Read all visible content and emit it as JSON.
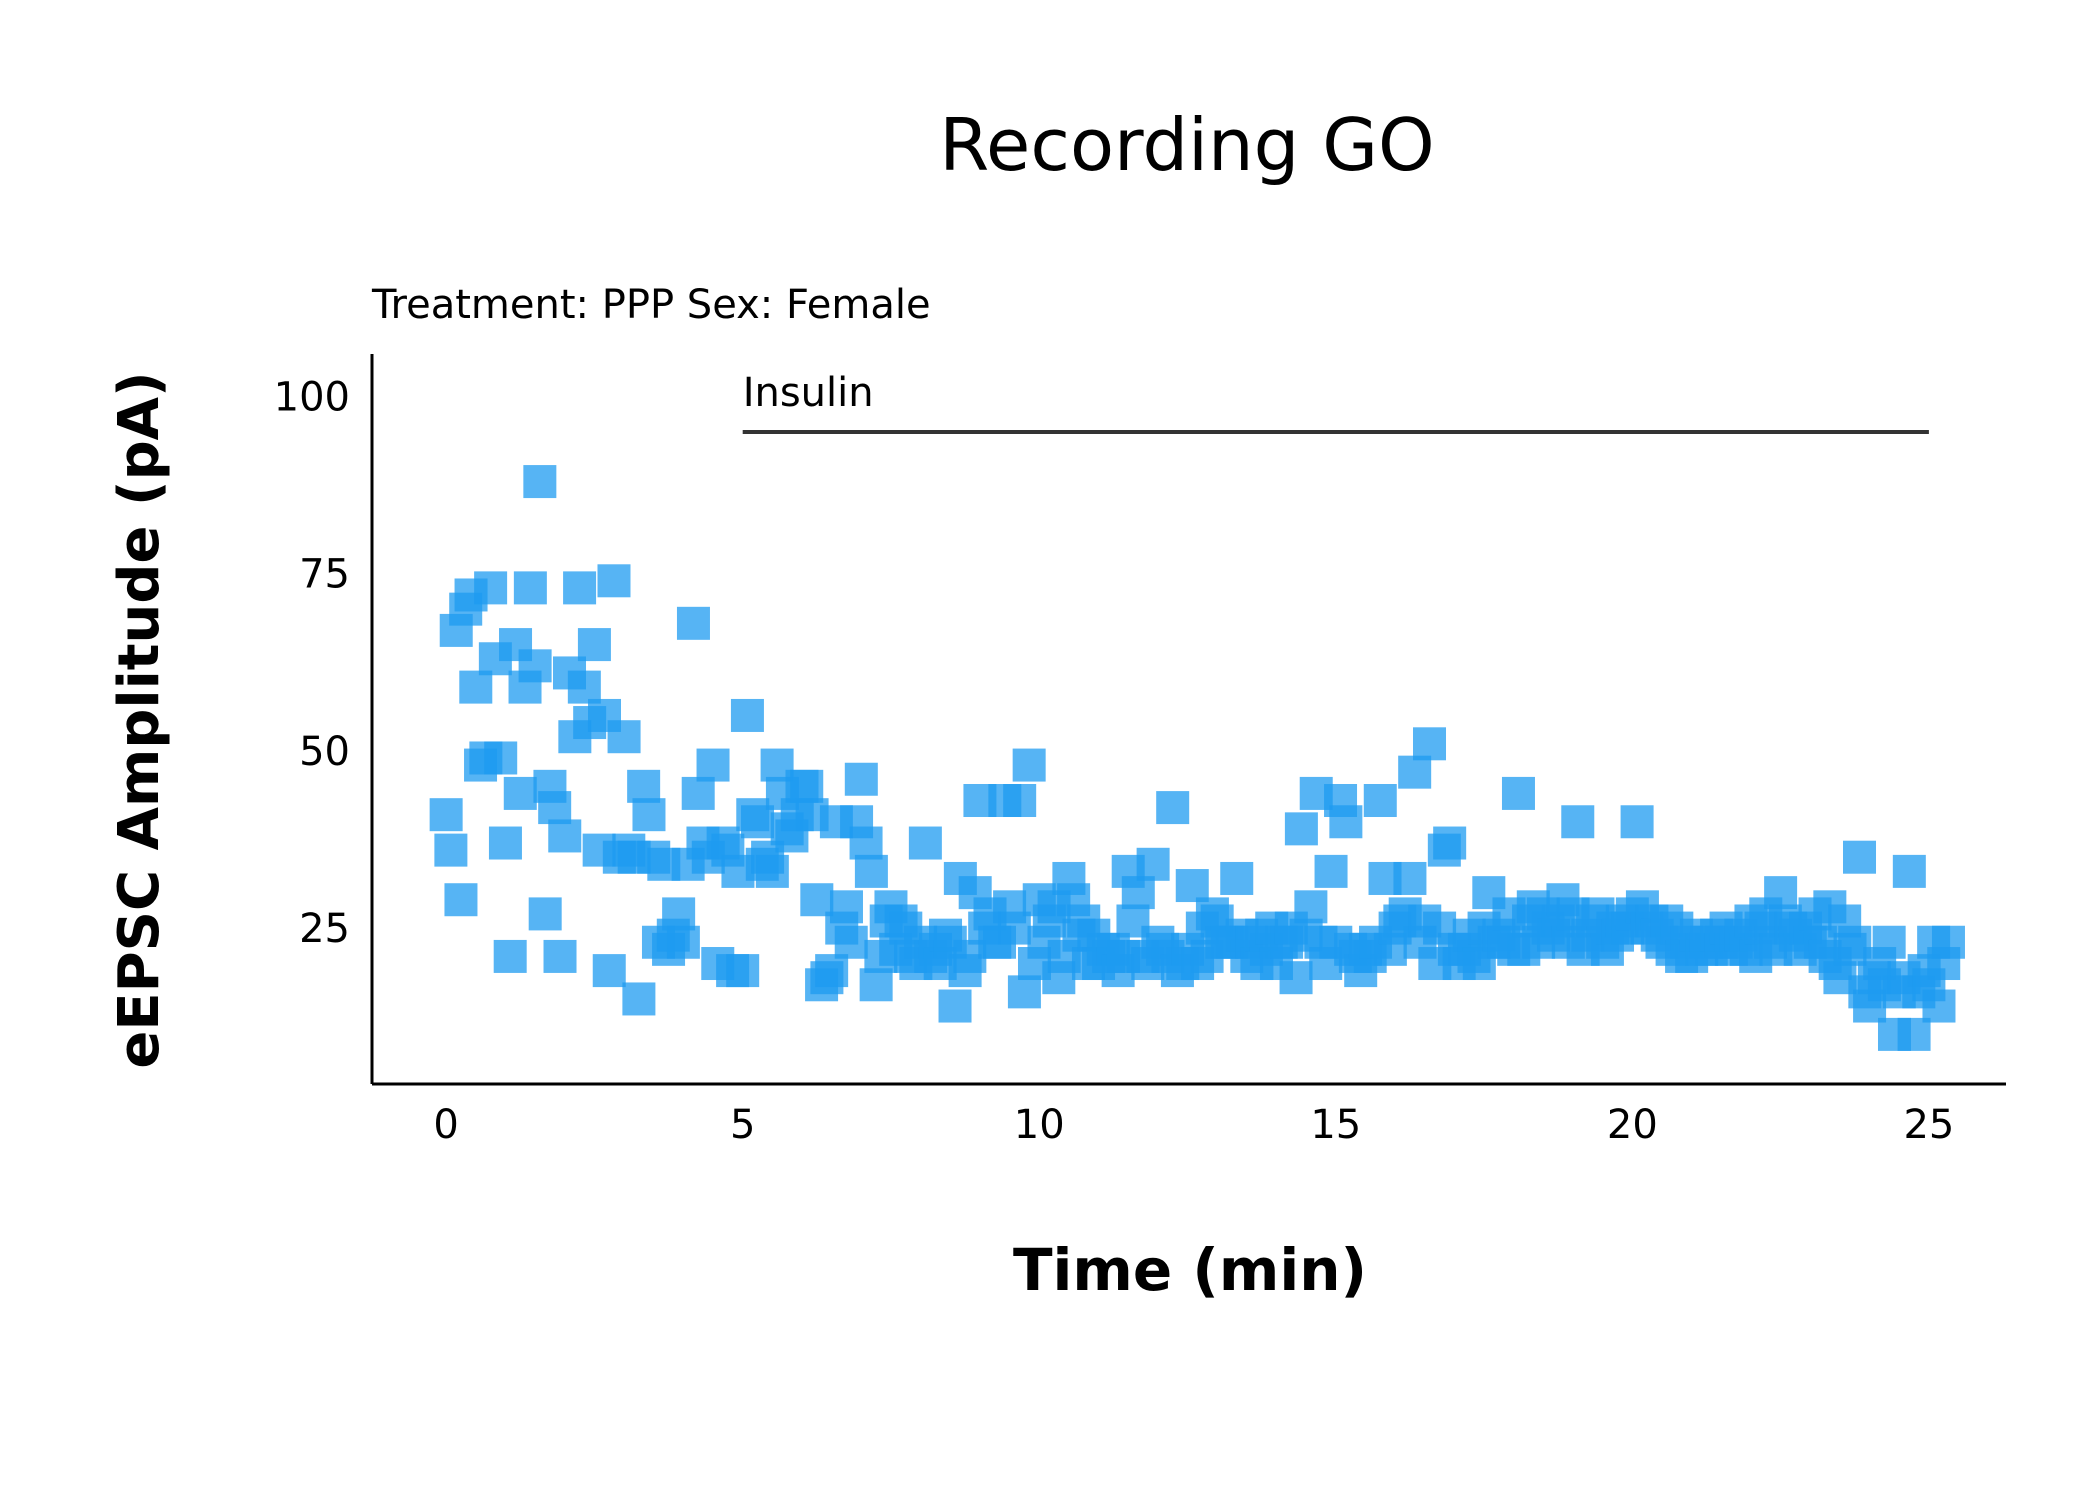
{
  "chart_data": {
    "type": "scatter",
    "title": "Recording GO",
    "subtitle": "Treatment: PPP  Sex: Female",
    "xlabel": "Time (min)",
    "ylabel": "eEPSC Amplitude (pA)",
    "xlim": [
      -1.25,
      26.3
    ],
    "ylim": [
      3,
      106
    ],
    "xticks": [
      0,
      5,
      10,
      15,
      20,
      25
    ],
    "yticks": [
      25,
      50,
      75,
      100
    ],
    "grid": false,
    "legend": "none",
    "marker": "square",
    "marker_color": "#1E9BF0",
    "annotation": {
      "label": "Insulin",
      "x_start": 5,
      "x_end": 25,
      "y": 95,
      "color": "#333333"
    },
    "points": [
      [
        0.0,
        41
      ],
      [
        0.08,
        36
      ],
      [
        0.17,
        67
      ],
      [
        0.25,
        29
      ],
      [
        0.33,
        70
      ],
      [
        0.42,
        72
      ],
      [
        0.5,
        59
      ],
      [
        0.58,
        48
      ],
      [
        0.67,
        49
      ],
      [
        0.75,
        73
      ],
      [
        0.83,
        63
      ],
      [
        0.92,
        49
      ],
      [
        1.0,
        37
      ],
      [
        1.08,
        21
      ],
      [
        1.17,
        65
      ],
      [
        1.25,
        44
      ],
      [
        1.33,
        59
      ],
      [
        1.42,
        73
      ],
      [
        1.5,
        62
      ],
      [
        1.58,
        88
      ],
      [
        1.67,
        27
      ],
      [
        1.75,
        45
      ],
      [
        1.83,
        42
      ],
      [
        1.92,
        21
      ],
      [
        2.0,
        38
      ],
      [
        2.08,
        61
      ],
      [
        2.17,
        52
      ],
      [
        2.25,
        73
      ],
      [
        2.33,
        59
      ],
      [
        2.42,
        54
      ],
      [
        2.5,
        65
      ],
      [
        2.58,
        36
      ],
      [
        2.67,
        55
      ],
      [
        2.75,
        19
      ],
      [
        2.83,
        74
      ],
      [
        2.92,
        35
      ],
      [
        3.0,
        52
      ],
      [
        3.08,
        36
      ],
      [
        3.17,
        35
      ],
      [
        3.25,
        15
      ],
      [
        3.33,
        45
      ],
      [
        3.42,
        41
      ],
      [
        3.5,
        35
      ],
      [
        3.58,
        23
      ],
      [
        3.67,
        34
      ],
      [
        3.75,
        22
      ],
      [
        3.83,
        24
      ],
      [
        3.92,
        27
      ],
      [
        4.0,
        23
      ],
      [
        4.08,
        34
      ],
      [
        4.17,
        68
      ],
      [
        4.25,
        44
      ],
      [
        4.33,
        37
      ],
      [
        4.42,
        35
      ],
      [
        4.5,
        48
      ],
      [
        4.58,
        20
      ],
      [
        4.67,
        37
      ],
      [
        4.75,
        36
      ],
      [
        4.83,
        19
      ],
      [
        4.92,
        33
      ],
      [
        5.0,
        19
      ],
      [
        5.08,
        55
      ],
      [
        5.17,
        41
      ],
      [
        5.25,
        40
      ],
      [
        5.33,
        34
      ],
      [
        5.42,
        35
      ],
      [
        5.5,
        33
      ],
      [
        5.58,
        48
      ],
      [
        5.67,
        44
      ],
      [
        5.75,
        39
      ],
      [
        5.83,
        38
      ],
      [
        5.92,
        41
      ],
      [
        6.0,
        45
      ],
      [
        6.08,
        45
      ],
      [
        6.17,
        41
      ],
      [
        6.25,
        29
      ],
      [
        6.33,
        17
      ],
      [
        6.42,
        18
      ],
      [
        6.5,
        19
      ],
      [
        6.58,
        40
      ],
      [
        6.67,
        25
      ],
      [
        6.75,
        28
      ],
      [
        6.83,
        23
      ],
      [
        6.92,
        40
      ],
      [
        7.0,
        46
      ],
      [
        7.08,
        37
      ],
      [
        7.17,
        33
      ],
      [
        7.25,
        17
      ],
      [
        7.33,
        21
      ],
      [
        7.42,
        26
      ],
      [
        7.5,
        28
      ],
      [
        7.58,
        22
      ],
      [
        7.67,
        26
      ],
      [
        7.75,
        25
      ],
      [
        7.83,
        21
      ],
      [
        7.92,
        20
      ],
      [
        8.0,
        23
      ],
      [
        8.08,
        37
      ],
      [
        8.17,
        21
      ],
      [
        8.25,
        22
      ],
      [
        8.33,
        20
      ],
      [
        8.42,
        24
      ],
      [
        8.5,
        23
      ],
      [
        8.58,
        14
      ],
      [
        8.67,
        32
      ],
      [
        8.75,
        19
      ],
      [
        8.83,
        21
      ],
      [
        8.92,
        30
      ],
      [
        9.0,
        43
      ],
      [
        9.08,
        25
      ],
      [
        9.17,
        27
      ],
      [
        9.25,
        23
      ],
      [
        9.33,
        23
      ],
      [
        9.42,
        43
      ],
      [
        9.5,
        28
      ],
      [
        9.58,
        25
      ],
      [
        9.67,
        43
      ],
      [
        9.75,
        16
      ],
      [
        9.83,
        48
      ],
      [
        9.92,
        20
      ],
      [
        10.0,
        29
      ],
      [
        10.08,
        23
      ],
      [
        10.17,
        26
      ],
      [
        10.25,
        28
      ],
      [
        10.33,
        18
      ],
      [
        10.42,
        21
      ],
      [
        10.5,
        32
      ],
      [
        10.58,
        29
      ],
      [
        10.67,
        24
      ],
      [
        10.75,
        26
      ],
      [
        10.83,
        20
      ],
      [
        10.92,
        24
      ],
      [
        11.0,
        20
      ],
      [
        11.08,
        22
      ],
      [
        11.17,
        21
      ],
      [
        11.25,
        22
      ],
      [
        11.33,
        19
      ],
      [
        11.42,
        21
      ],
      [
        11.5,
        33
      ],
      [
        11.58,
        26
      ],
      [
        11.67,
        30
      ],
      [
        11.75,
        21
      ],
      [
        11.83,
        20
      ],
      [
        11.92,
        34
      ],
      [
        12.0,
        23
      ],
      [
        12.08,
        22
      ],
      [
        12.17,
        21
      ],
      [
        12.25,
        42
      ],
      [
        12.33,
        19
      ],
      [
        12.42,
        20
      ],
      [
        12.5,
        22
      ],
      [
        12.58,
        31
      ],
      [
        12.67,
        20
      ],
      [
        12.75,
        25
      ],
      [
        12.83,
        21
      ],
      [
        12.92,
        27
      ],
      [
        13.0,
        26
      ],
      [
        13.08,
        23
      ],
      [
        13.17,
        23
      ],
      [
        13.25,
        23
      ],
      [
        13.33,
        32
      ],
      [
        13.42,
        24
      ],
      [
        13.5,
        21
      ],
      [
        13.58,
        23
      ],
      [
        13.67,
        20
      ],
      [
        13.75,
        24
      ],
      [
        13.83,
        22
      ],
      [
        13.92,
        25
      ],
      [
        14.0,
        20
      ],
      [
        14.08,
        23
      ],
      [
        14.17,
        23
      ],
      [
        14.25,
        25
      ],
      [
        14.33,
        18
      ],
      [
        14.42,
        39
      ],
      [
        14.5,
        24
      ],
      [
        14.58,
        28
      ],
      [
        14.67,
        44
      ],
      [
        14.75,
        23
      ],
      [
        14.83,
        20
      ],
      [
        14.92,
        33
      ],
      [
        15.0,
        23
      ],
      [
        15.08,
        43
      ],
      [
        15.17,
        40
      ],
      [
        15.25,
        22
      ],
      [
        15.33,
        21
      ],
      [
        15.42,
        19
      ],
      [
        15.5,
        22
      ],
      [
        15.58,
        21
      ],
      [
        15.67,
        23
      ],
      [
        15.75,
        43
      ],
      [
        15.83,
        32
      ],
      [
        15.92,
        22
      ],
      [
        16.0,
        25
      ],
      [
        16.08,
        26
      ],
      [
        16.17,
        27
      ],
      [
        16.25,
        32
      ],
      [
        16.33,
        47
      ],
      [
        16.42,
        23
      ],
      [
        16.5,
        26
      ],
      [
        16.58,
        51
      ],
      [
        16.67,
        20
      ],
      [
        16.75,
        25
      ],
      [
        16.83,
        36
      ],
      [
        16.92,
        37
      ],
      [
        17.0,
        22
      ],
      [
        17.08,
        20
      ],
      [
        17.17,
        22
      ],
      [
        17.25,
        24
      ],
      [
        17.33,
        21
      ],
      [
        17.42,
        20
      ],
      [
        17.5,
        25
      ],
      [
        17.58,
        30
      ],
      [
        17.67,
        23
      ],
      [
        17.75,
        24
      ],
      [
        17.83,
        23
      ],
      [
        17.92,
        27
      ],
      [
        18.0,
        22
      ],
      [
        18.08,
        44
      ],
      [
        18.17,
        22
      ],
      [
        18.25,
        26
      ],
      [
        18.33,
        28
      ],
      [
        18.42,
        23
      ],
      [
        18.5,
        27
      ],
      [
        18.58,
        25
      ],
      [
        18.67,
        24
      ],
      [
        18.75,
        26
      ],
      [
        18.83,
        29
      ],
      [
        18.92,
        23
      ],
      [
        19.0,
        27
      ],
      [
        19.08,
        40
      ],
      [
        19.17,
        22
      ],
      [
        19.25,
        24
      ],
      [
        19.33,
        26
      ],
      [
        19.42,
        27
      ],
      [
        19.5,
        23
      ],
      [
        19.58,
        22
      ],
      [
        19.67,
        25
      ],
      [
        19.75,
        24
      ],
      [
        19.83,
        26
      ],
      [
        19.92,
        25
      ],
      [
        20.0,
        27
      ],
      [
        20.08,
        40
      ],
      [
        20.17,
        28
      ],
      [
        20.25,
        25
      ],
      [
        20.33,
        26
      ],
      [
        20.42,
        24
      ],
      [
        20.5,
        23
      ],
      [
        20.58,
        26
      ],
      [
        20.67,
        22
      ],
      [
        20.75,
        25
      ],
      [
        20.83,
        21
      ],
      [
        20.92,
        23
      ],
      [
        21.0,
        21
      ],
      [
        21.08,
        24
      ],
      [
        21.17,
        22
      ],
      [
        21.25,
        23
      ],
      [
        21.33,
        22
      ],
      [
        21.42,
        24
      ],
      [
        21.5,
        23
      ],
      [
        21.58,
        25
      ],
      [
        21.67,
        22
      ],
      [
        21.75,
        23
      ],
      [
        21.83,
        24
      ],
      [
        21.92,
        22
      ],
      [
        22.0,
        26
      ],
      [
        22.08,
        21
      ],
      [
        22.17,
        25
      ],
      [
        22.25,
        27
      ],
      [
        22.33,
        23
      ],
      [
        22.42,
        22
      ],
      [
        22.5,
        30
      ],
      [
        22.58,
        26
      ],
      [
        22.67,
        25
      ],
      [
        22.75,
        24
      ],
      [
        22.83,
        22
      ],
      [
        22.92,
        25
      ],
      [
        23.0,
        23
      ],
      [
        23.08,
        27
      ],
      [
        23.17,
        23
      ],
      [
        23.25,
        21
      ],
      [
        23.33,
        28
      ],
      [
        23.42,
        20
      ],
      [
        23.5,
        18
      ],
      [
        23.58,
        26
      ],
      [
        23.67,
        22
      ],
      [
        23.75,
        23
      ],
      [
        23.83,
        35
      ],
      [
        23.92,
        16
      ],
      [
        24.0,
        14
      ],
      [
        24.08,
        18
      ],
      [
        24.17,
        20
      ],
      [
        24.25,
        17
      ],
      [
        24.33,
        23
      ],
      [
        24.42,
        10
      ],
      [
        24.5,
        16
      ],
      [
        24.58,
        18
      ],
      [
        24.67,
        33
      ],
      [
        24.75,
        10
      ],
      [
        24.83,
        16
      ],
      [
        24.92,
        19
      ],
      [
        25.0,
        17
      ],
      [
        25.08,
        23
      ],
      [
        25.17,
        14
      ],
      [
        25.25,
        20
      ],
      [
        25.33,
        23
      ]
    ]
  }
}
